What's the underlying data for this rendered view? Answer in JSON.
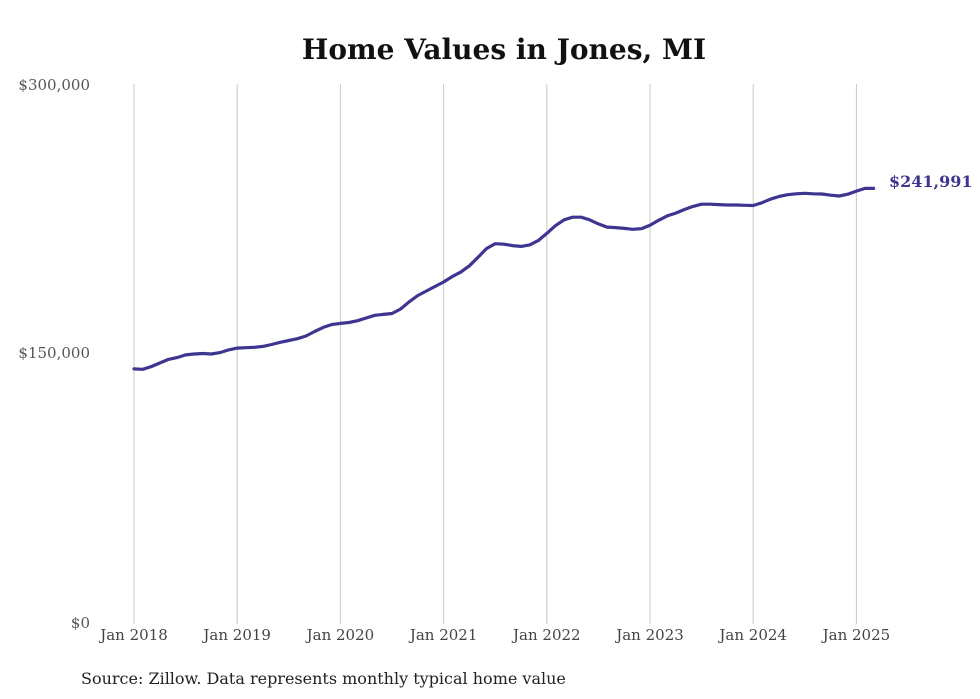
{
  "colors": {
    "line": "#3d3590",
    "grid": "#c8c8c8",
    "background": "#ffffff"
  },
  "source_note": "Source: Zillow. Data represents monthly typical home value",
  "chart_data": {
    "type": "line",
    "title": "Home Values in Jones, MI",
    "xlabel": "",
    "ylabel": "",
    "ylim": [
      0,
      300000
    ],
    "y_ticks": [
      {
        "value": 300000,
        "label": "$300,000"
      },
      {
        "value": 150000,
        "label": "$150,000"
      },
      {
        "value": 0,
        "label": "$0"
      }
    ],
    "x_ticks": [
      {
        "value": "2018-01",
        "label": "Jan 2018"
      },
      {
        "value": "2019-01",
        "label": "Jan 2019"
      },
      {
        "value": "2020-01",
        "label": "Jan 2020"
      },
      {
        "value": "2021-01",
        "label": "Jan 2021"
      },
      {
        "value": "2022-01",
        "label": "Jan 2022"
      },
      {
        "value": "2023-01",
        "label": "Jan 2023"
      },
      {
        "value": "2024-01",
        "label": "Jan 2024"
      },
      {
        "value": "2025-01",
        "label": "Jan 2025"
      }
    ],
    "grid": {
      "vertical": true,
      "horizontal": false
    },
    "end_label": "$241,991",
    "series": [
      {
        "x": [
          "2018-01",
          "2018-02",
          "2018-03",
          "2018-04",
          "2018-05",
          "2018-06",
          "2018-07",
          "2018-08",
          "2018-09",
          "2018-10",
          "2018-11",
          "2018-12",
          "2019-01",
          "2019-02",
          "2019-03",
          "2019-04",
          "2019-05",
          "2019-06",
          "2019-07",
          "2019-08",
          "2019-09",
          "2019-10",
          "2019-11",
          "2019-12",
          "2020-01",
          "2020-02",
          "2020-03",
          "2020-04",
          "2020-05",
          "2020-06",
          "2020-07",
          "2020-08",
          "2020-09",
          "2020-10",
          "2020-11",
          "2020-12",
          "2021-01",
          "2021-02",
          "2021-03",
          "2021-04",
          "2021-05",
          "2021-06",
          "2021-07",
          "2021-08",
          "2021-09",
          "2021-10",
          "2021-11",
          "2021-12",
          "2022-01",
          "2022-02",
          "2022-03",
          "2022-04",
          "2022-05",
          "2022-06",
          "2022-07",
          "2022-08",
          "2022-09",
          "2022-10",
          "2022-11",
          "2022-12",
          "2023-01",
          "2023-02",
          "2023-03",
          "2023-04",
          "2023-05",
          "2023-06",
          "2023-07",
          "2023-08",
          "2023-09",
          "2023-10",
          "2023-11",
          "2023-12",
          "2024-01",
          "2024-02",
          "2024-03",
          "2024-04",
          "2024-05",
          "2024-06",
          "2024-07",
          "2024-08",
          "2024-09",
          "2024-10",
          "2024-11",
          "2024-12",
          "2025-01",
          "2025-02",
          "2025-03"
        ],
        "values": [
          141700,
          141500,
          143000,
          145000,
          147000,
          148000,
          149500,
          150000,
          150300,
          150000,
          150800,
          152300,
          153300,
          153500,
          153700,
          154200,
          155300,
          156500,
          157500,
          158500,
          160000,
          162500,
          164800,
          166400,
          167000,
          167500,
          168500,
          170000,
          171500,
          172000,
          172500,
          175000,
          179000,
          182500,
          185000,
          187500,
          190000,
          193000,
          195500,
          199000,
          203700,
          208600,
          211300,
          211000,
          210200,
          209800,
          210600,
          213000,
          217000,
          221300,
          224500,
          226000,
          226000,
          224500,
          222300,
          220500,
          220200,
          219800,
          219300,
          219600,
          221500,
          224300,
          226700,
          228300,
          230300,
          232000,
          233200,
          233200,
          233000,
          232800,
          232800,
          232600,
          232500,
          234000,
          236000,
          237500,
          238500,
          239000,
          239300,
          239000,
          238900,
          238200,
          237800,
          238800,
          240500,
          241991,
          241991
        ]
      }
    ]
  }
}
